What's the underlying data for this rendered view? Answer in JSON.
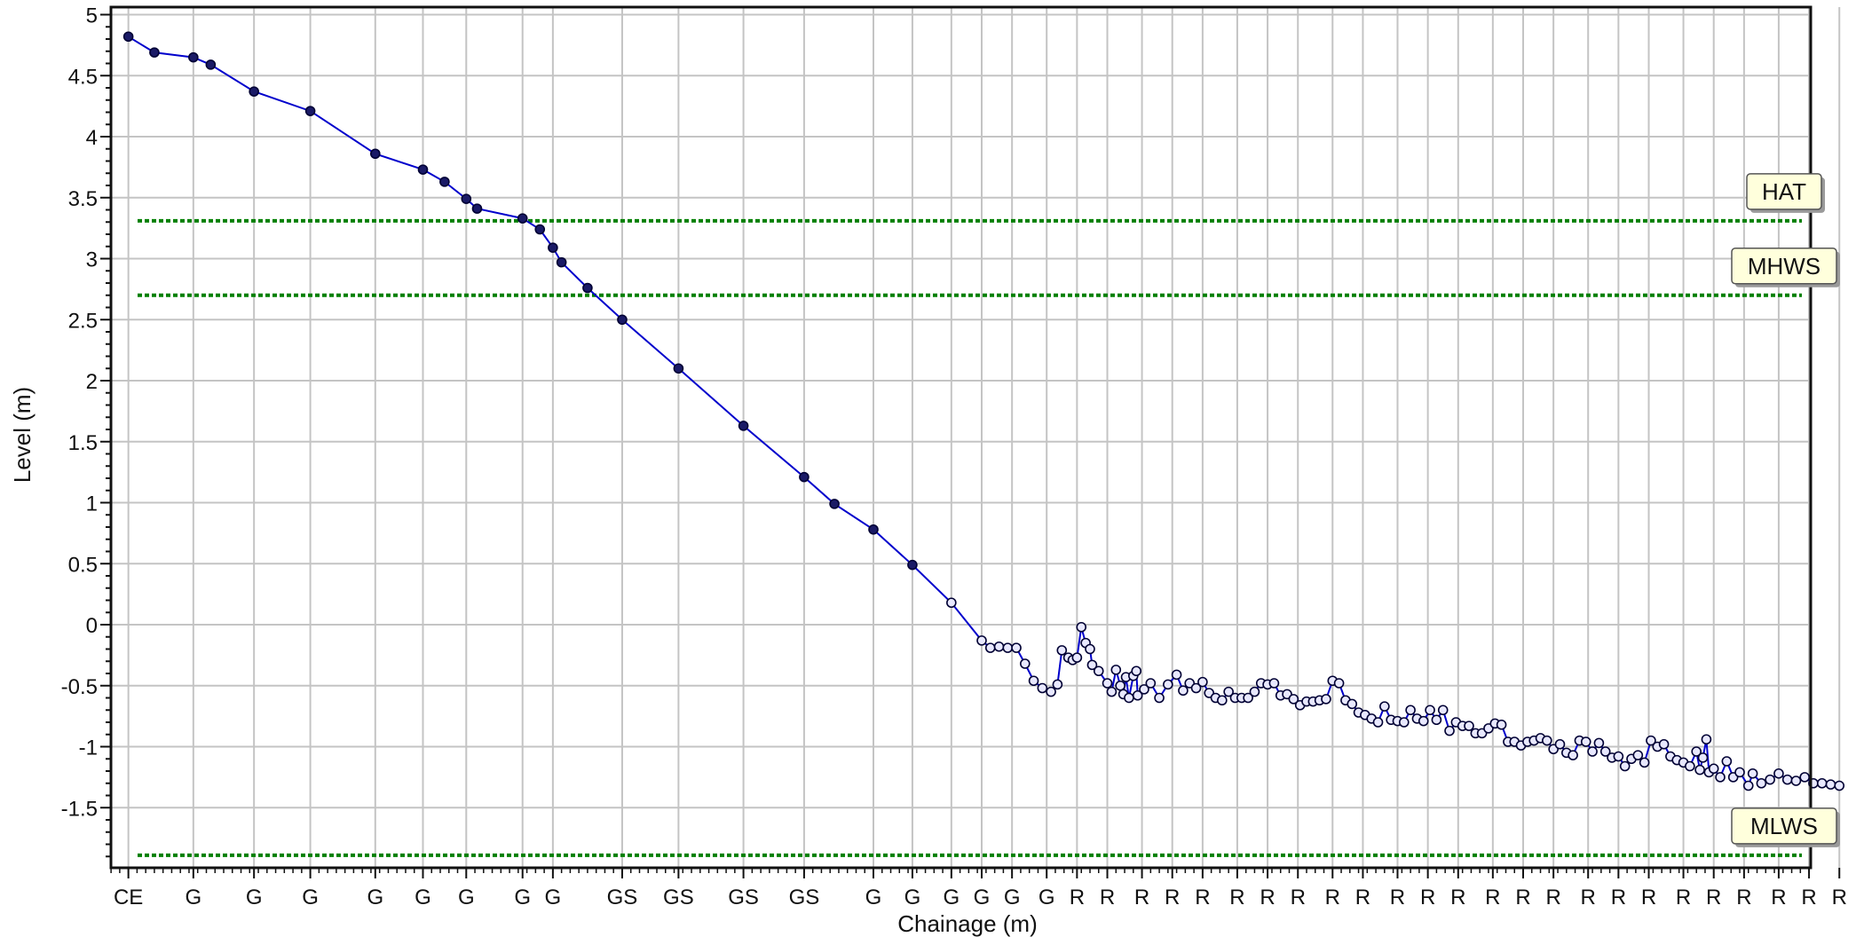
{
  "chart_data": {
    "type": "line",
    "title": "",
    "xlabel": "Chainage (m)",
    "ylabel": "Level (m)",
    "ylim": [
      -2,
      5
    ],
    "y_ticks": [
      "5",
      "4.5",
      "4",
      "3.5",
      "3",
      "2.5",
      "2",
      "1.5",
      "1",
      "0.5",
      "0",
      "-0.5",
      "-1",
      "-1.5"
    ],
    "y_tick_values": [
      5,
      4.5,
      4,
      3.5,
      3,
      2.5,
      2,
      1.5,
      1,
      0.5,
      0,
      -0.5,
      -1,
      -1.5
    ],
    "grid": true,
    "xlim": [
      0,
      400
    ],
    "x_ticks": [
      {
        "x": 3,
        "label": "CE"
      },
      {
        "x": 18,
        "label": "G"
      },
      {
        "x": 32,
        "label": "G"
      },
      {
        "x": 45,
        "label": "G"
      },
      {
        "x": 60,
        "label": "G"
      },
      {
        "x": 71,
        "label": "G"
      },
      {
        "x": 81,
        "label": "G"
      },
      {
        "x": 94,
        "label": "G"
      },
      {
        "x": 101,
        "label": "G"
      },
      {
        "x": 117,
        "label": "GS"
      },
      {
        "x": 130,
        "label": "GS"
      },
      {
        "x": 145,
        "label": "GS"
      },
      {
        "x": 159,
        "label": "GS"
      },
      {
        "x": 175,
        "label": "G"
      },
      {
        "x": 184,
        "label": "G"
      },
      {
        "x": 193,
        "label": "G"
      },
      {
        "x": 200,
        "label": "G"
      },
      {
        "x": 207,
        "label": "G"
      },
      {
        "x": 215,
        "label": "G"
      },
      {
        "x": 222,
        "label": "R"
      },
      {
        "x": 229,
        "label": "R"
      },
      {
        "x": 237,
        "label": "R"
      },
      {
        "x": 244,
        "label": "R"
      },
      {
        "x": 251,
        "label": "R"
      },
      {
        "x": 259,
        "label": "R"
      },
      {
        "x": 266,
        "label": "R"
      },
      {
        "x": 273,
        "label": "R"
      },
      {
        "x": 281,
        "label": "R"
      },
      {
        "x": 288,
        "label": "R"
      },
      {
        "x": 296,
        "label": "R"
      },
      {
        "x": 303,
        "label": "R"
      },
      {
        "x": 310,
        "label": "R"
      },
      {
        "x": 318,
        "label": "R"
      },
      {
        "x": 325,
        "label": "R"
      },
      {
        "x": 332,
        "label": "R"
      },
      {
        "x": 340,
        "label": "R"
      },
      {
        "x": 347,
        "label": "R"
      },
      {
        "x": 354,
        "label": "R"
      },
      {
        "x": 362,
        "label": "R"
      },
      {
        "x": 369,
        "label": "R"
      },
      {
        "x": 376,
        "label": "R"
      },
      {
        "x": 384,
        "label": "R"
      },
      {
        "x": 391,
        "label": "R"
      },
      {
        "x": 398,
        "label": "R"
      }
    ],
    "series": [
      {
        "color": "#0000cc",
        "points": [
          [
            3,
            4.82
          ],
          [
            9,
            4.69
          ],
          [
            18,
            4.65
          ],
          [
            22,
            4.59
          ],
          [
            32,
            4.37
          ],
          [
            45,
            4.21
          ],
          [
            60,
            3.86
          ],
          [
            71,
            3.73
          ],
          [
            76,
            3.63
          ],
          [
            81,
            3.49
          ],
          [
            83.5,
            3.41
          ],
          [
            94,
            3.33
          ],
          [
            98,
            3.24
          ],
          [
            101,
            3.09
          ],
          [
            103,
            2.97
          ],
          [
            109,
            2.76
          ],
          [
            117,
            2.5
          ],
          [
            130,
            2.1
          ],
          [
            145,
            1.63
          ],
          [
            159,
            1.21
          ],
          [
            166,
            0.99
          ],
          [
            175,
            0.78
          ],
          [
            184,
            0.49
          ],
          [
            193,
            0.18
          ],
          [
            200,
            -0.13
          ],
          [
            202,
            -0.19
          ],
          [
            204,
            -0.18
          ],
          [
            206,
            -0.19
          ],
          [
            208,
            -0.19
          ],
          [
            210,
            -0.32
          ],
          [
            212,
            -0.46
          ],
          [
            214,
            -0.52
          ],
          [
            216,
            -0.55
          ],
          [
            217.5,
            -0.49
          ],
          [
            218.5,
            -0.21
          ],
          [
            220,
            -0.27
          ],
          [
            221,
            -0.29
          ],
          [
            222,
            -0.27
          ],
          [
            223,
            -0.02
          ],
          [
            224,
            -0.15
          ],
          [
            225,
            -0.2
          ],
          [
            225.5,
            -0.33
          ],
          [
            227,
            -0.38
          ],
          [
            229,
            -0.48
          ],
          [
            230,
            -0.55
          ],
          [
            231,
            -0.37
          ],
          [
            232,
            -0.5
          ],
          [
            232.7,
            -0.57
          ],
          [
            233.3,
            -0.43
          ],
          [
            234,
            -0.6
          ],
          [
            235,
            -0.42
          ],
          [
            235.7,
            -0.38
          ],
          [
            236,
            -0.58
          ],
          [
            237.5,
            -0.53
          ],
          [
            239,
            -0.48
          ],
          [
            241,
            -0.6
          ],
          [
            243,
            -0.49
          ],
          [
            245,
            -0.41
          ],
          [
            246.5,
            -0.54
          ],
          [
            248,
            -0.48
          ],
          [
            249.5,
            -0.52
          ],
          [
            251,
            -0.47
          ],
          [
            252.5,
            -0.56
          ],
          [
            254,
            -0.6
          ],
          [
            255.5,
            -0.62
          ],
          [
            257,
            -0.55
          ],
          [
            258.5,
            -0.6
          ],
          [
            260,
            -0.6
          ],
          [
            261.5,
            -0.6
          ],
          [
            263,
            -0.55
          ],
          [
            264.5,
            -0.48
          ],
          [
            266,
            -0.49
          ],
          [
            267.5,
            -0.48
          ],
          [
            269,
            -0.58
          ],
          [
            270.5,
            -0.57
          ],
          [
            272,
            -0.61
          ],
          [
            273.5,
            -0.66
          ],
          [
            275,
            -0.63
          ],
          [
            276.5,
            -0.63
          ],
          [
            278,
            -0.62
          ],
          [
            279.5,
            -0.61
          ],
          [
            281,
            -0.46
          ],
          [
            282.5,
            -0.48
          ],
          [
            284,
            -0.62
          ],
          [
            285.5,
            -0.65
          ],
          [
            287,
            -0.72
          ],
          [
            288.5,
            -0.74
          ],
          [
            290,
            -0.77
          ],
          [
            291.5,
            -0.8
          ],
          [
            293,
            -0.67
          ],
          [
            294.5,
            -0.78
          ],
          [
            296,
            -0.79
          ],
          [
            297.5,
            -0.8
          ],
          [
            299,
            -0.7
          ],
          [
            300.5,
            -0.77
          ],
          [
            302,
            -0.79
          ],
          [
            303.5,
            -0.7
          ],
          [
            305,
            -0.78
          ],
          [
            306.5,
            -0.7
          ],
          [
            308,
            -0.87
          ],
          [
            309.5,
            -0.8
          ],
          [
            311,
            -0.83
          ],
          [
            312.5,
            -0.83
          ],
          [
            314,
            -0.89
          ],
          [
            315.5,
            -0.89
          ],
          [
            317,
            -0.85
          ],
          [
            318.5,
            -0.81
          ],
          [
            320,
            -0.82
          ],
          [
            321.5,
            -0.96
          ],
          [
            323,
            -0.96
          ],
          [
            324.5,
            -0.99
          ],
          [
            326,
            -0.96
          ],
          [
            327.5,
            -0.95
          ],
          [
            329,
            -0.93
          ],
          [
            330.5,
            -0.95
          ],
          [
            332,
            -1.02
          ],
          [
            333.5,
            -0.98
          ],
          [
            335,
            -1.05
          ],
          [
            336.5,
            -1.07
          ],
          [
            338,
            -0.95
          ],
          [
            339.5,
            -0.96
          ],
          [
            341,
            -1.04
          ],
          [
            342.5,
            -0.97
          ],
          [
            344,
            -1.04
          ],
          [
            345.5,
            -1.09
          ],
          [
            347,
            -1.08
          ],
          [
            348.5,
            -1.16
          ],
          [
            350,
            -1.1
          ],
          [
            351.5,
            -1.07
          ],
          [
            353,
            -1.13
          ],
          [
            354.5,
            -0.95
          ],
          [
            356,
            -1.0
          ],
          [
            357.5,
            -0.98
          ],
          [
            359,
            -1.08
          ],
          [
            360.5,
            -1.11
          ],
          [
            362,
            -1.13
          ],
          [
            363.5,
            -1.16
          ],
          [
            365,
            -1.04
          ],
          [
            365.8,
            -1.19
          ],
          [
            366.5,
            -1.09
          ],
          [
            367.3,
            -0.94
          ],
          [
            367.9,
            -1.21
          ],
          [
            369,
            -1.18
          ],
          [
            370.5,
            -1.25
          ],
          [
            372,
            -1.12
          ],
          [
            373.5,
            -1.25
          ],
          [
            375,
            -1.21
          ],
          [
            377,
            -1.32
          ],
          [
            378,
            -1.22
          ],
          [
            380,
            -1.3
          ],
          [
            382,
            -1.27
          ],
          [
            384,
            -1.22
          ],
          [
            386,
            -1.27
          ],
          [
            388,
            -1.28
          ],
          [
            390,
            -1.25
          ],
          [
            392,
            -1.3
          ],
          [
            394,
            -1.3
          ],
          [
            396,
            -1.31
          ],
          [
            398,
            -1.32
          ]
        ]
      }
    ],
    "reference_lines": [
      {
        "label": "HAT",
        "y": 3.31,
        "color": "#008000"
      },
      {
        "label": "MHWS",
        "y": 2.7,
        "color": "#008000"
      },
      {
        "label": "MLWS",
        "y": -1.89,
        "color": "#008000"
      }
    ]
  }
}
